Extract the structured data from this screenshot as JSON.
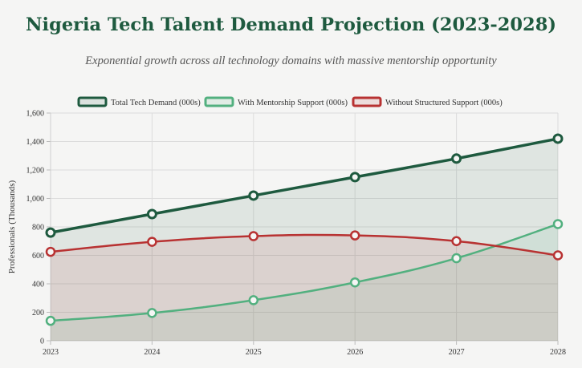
{
  "title": "Nigeria Tech Talent Demand Projection (2023-2028)",
  "subtitle": "Exponential growth across all technology domains with massive mentorship opportunity",
  "chart_data": {
    "type": "line",
    "categories": [
      "2023",
      "2024",
      "2025",
      "2026",
      "2027",
      "2028"
    ],
    "ylabel": "Professionals (Thousands)",
    "xlabel": "",
    "ylim": [
      0,
      1600
    ],
    "yticks": [
      "0",
      "200",
      "400",
      "600",
      "800",
      "1,000",
      "1,200",
      "1,400",
      "1,600"
    ],
    "ytick_values": [
      0,
      200,
      400,
      600,
      800,
      1000,
      1200,
      1400,
      1600
    ],
    "legend_position": "top",
    "series": [
      {
        "name": "Total Tech Demand (000s)",
        "color": "#1e5a3f",
        "fill": "#1e5a3f",
        "values": [
          760,
          890,
          1020,
          1150,
          1280,
          1420
        ]
      },
      {
        "name": "With Mentorship Support (000s)",
        "color": "#52b07f",
        "fill": "#52b07f",
        "values": [
          140,
          195,
          285,
          410,
          580,
          820
        ]
      },
      {
        "name": "Without Structured Support (000s)",
        "color": "#b83232",
        "fill": "#b83232",
        "values": [
          625,
          695,
          735,
          740,
          700,
          600
        ]
      }
    ]
  }
}
